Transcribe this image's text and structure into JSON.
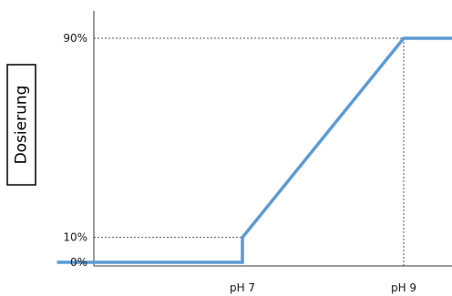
{
  "chart_data": {
    "type": "line",
    "title": "",
    "xlabel": "",
    "ylabel": "Dosierung",
    "grid": false,
    "x_ticks": [
      {
        "value": 7,
        "label": "pH 7"
      },
      {
        "value": 9,
        "label": "pH 9"
      }
    ],
    "y_ticks": [
      {
        "value": 0,
        "label": "0%"
      },
      {
        "value": 10,
        "label": "10%"
      },
      {
        "value": 90,
        "label": "90%"
      }
    ],
    "xlim": [
      4.7,
      9.6
    ],
    "ylim": [
      0,
      100
    ],
    "reference_lines": [
      {
        "axis": "y",
        "value": 90,
        "style": "dotted"
      },
      {
        "axis": "y",
        "value": 10,
        "style": "dotted"
      },
      {
        "axis": "x",
        "value": 9,
        "style": "dotted"
      }
    ],
    "series": [
      {
        "color": "#5b9bd5",
        "points": [
          {
            "x": 4.7,
            "y": 0
          },
          {
            "x": 7,
            "y": 0
          },
          {
            "x": 7,
            "y": 10
          },
          {
            "x": 9,
            "y": 90
          },
          {
            "x": 9.6,
            "y": 90
          }
        ]
      }
    ]
  }
}
